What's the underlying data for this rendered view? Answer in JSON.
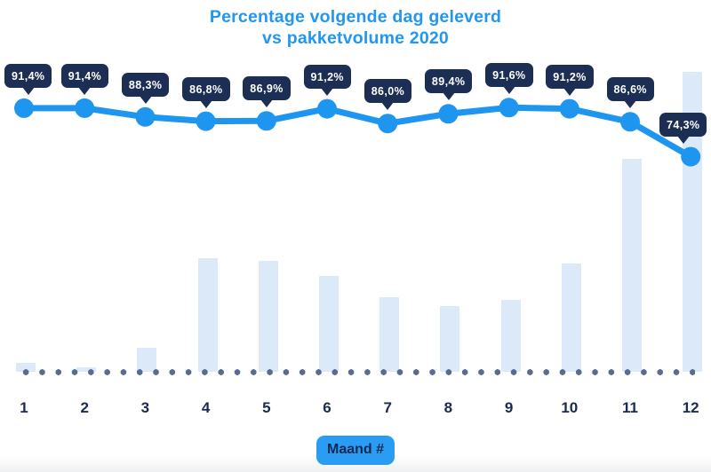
{
  "title": {
    "line1": "Percentage volgende dag geleverd",
    "line2": "vs pakketvolume 2020"
  },
  "x_axis": {
    "label": "Maand #",
    "categories": [
      "1",
      "2",
      "3",
      "4",
      "5",
      "6",
      "7",
      "8",
      "9",
      "10",
      "11",
      "12"
    ]
  },
  "colors": {
    "accent_blue": "#2196f3",
    "line_blue": "#1e96f0",
    "badge_navy": "#1c2e54",
    "bar_light_blue": "#dbe9f8",
    "baseline_dot_slate": "#5a6c8e",
    "month_label_navy": "#1b2a52"
  },
  "chart_data": {
    "type": "combo",
    "title": "Percentage volgende dag geleverd vs pakketvolume 2020",
    "categories": [
      1,
      2,
      3,
      4,
      5,
      6,
      7,
      8,
      9,
      10,
      11,
      12
    ],
    "xlabel": "Maand #",
    "grid": false,
    "legend": {
      "visible": false
    },
    "y_axis": {
      "visible": false,
      "baseline_style": "dotted"
    },
    "series": [
      {
        "name": "Percentage volgende dag geleverd",
        "type": "line",
        "unit": "%",
        "color": "#1e96f0",
        "values": [
          91.4,
          91.4,
          88.3,
          86.8,
          86.9,
          91.2,
          86.0,
          89.4,
          91.6,
          91.2,
          86.6,
          74.3
        ],
        "labels": [
          "91,4%",
          "91,4%",
          "88,3%",
          "86,8%",
          "86,9%",
          "91,2%",
          "86,0%",
          "89,4%",
          "91,6%",
          "91,2%",
          "86,6%",
          "74,3%"
        ]
      },
      {
        "name": "Pakketvolume 2020",
        "type": "bar",
        "color": "#dbe9f8",
        "value_scale": "relative, no axis shown, 100 = month 12",
        "values": [
          3,
          1.5,
          8,
          38,
          37,
          32,
          25,
          22,
          24,
          36,
          71,
          100
        ]
      }
    ]
  }
}
